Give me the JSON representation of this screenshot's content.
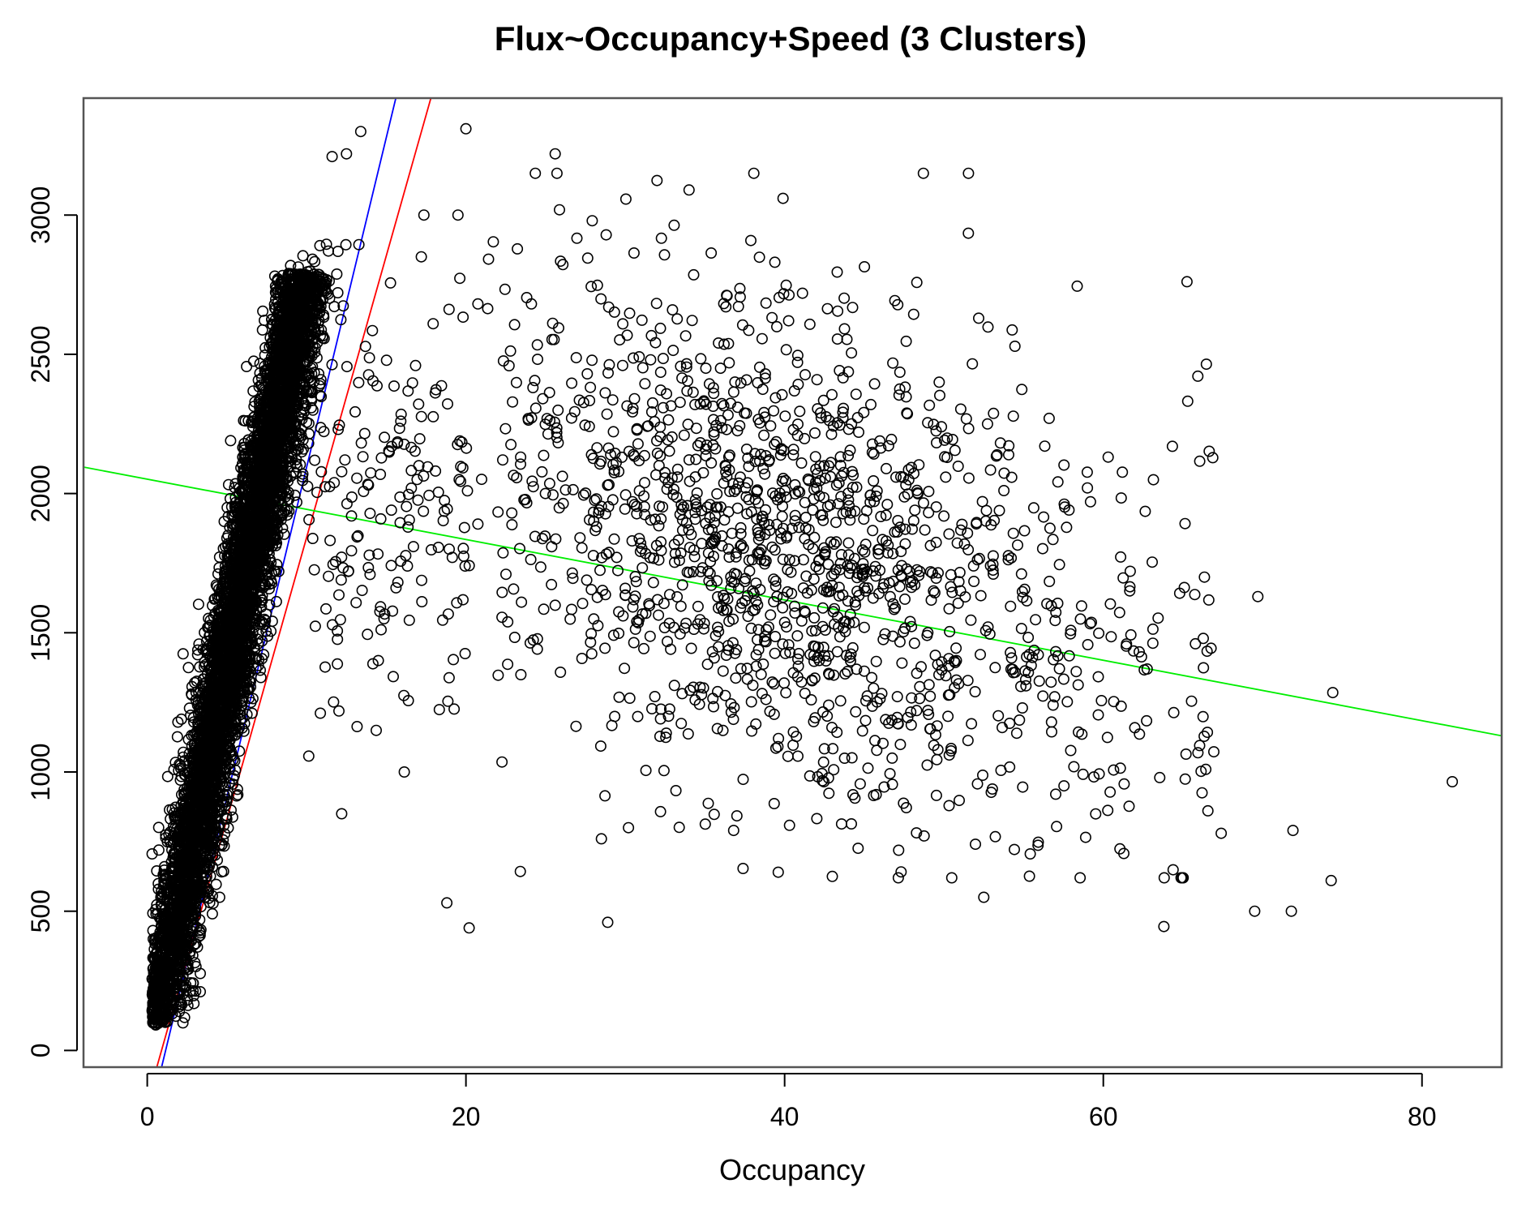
{
  "chart_data": {
    "type": "scatter",
    "title": "Flux~Occupancy+Speed (3 Clusters)",
    "xlabel": "Occupancy",
    "ylabel": "",
    "xlim": [
      -4,
      85
    ],
    "ylim": [
      -60,
      3420
    ],
    "x_ticks": [
      0,
      20,
      40,
      60,
      80
    ],
    "y_ticks": [
      0,
      500,
      1000,
      1500,
      2000,
      2500,
      3000
    ],
    "grid": false,
    "legend": "none",
    "point_color": "#000000",
    "point_shape": "open-circle",
    "clusters": [
      {
        "description_visible": false,
        "x_range": [
          0.5,
          10
        ],
        "y_range": [
          80,
          2900
        ],
        "approx_count": 6000,
        "trend": {
          "slope": 290,
          "intercept": -80
        }
      },
      {
        "x_range": [
          10,
          20
        ],
        "approx_count": 180
      },
      {
        "x_range": [
          20,
          82
        ],
        "approx_count": 1500
      }
    ],
    "outliers": [
      {
        "x": 12.2,
        "y": 850
      },
      {
        "x": 13.4,
        "y": 3300
      },
      {
        "x": 12.5,
        "y": 3220
      },
      {
        "x": 11.6,
        "y": 3210
      },
      {
        "x": 20.0,
        "y": 3310
      },
      {
        "x": 25.6,
        "y": 3220
      },
      {
        "x": 39.9,
        "y": 3060
      },
      {
        "x": 34.0,
        "y": 3090
      },
      {
        "x": 18.8,
        "y": 530
      },
      {
        "x": 20.2,
        "y": 440
      },
      {
        "x": 28.9,
        "y": 460
      },
      {
        "x": 52.5,
        "y": 550
      },
      {
        "x": 63.8,
        "y": 445
      },
      {
        "x": 69.5,
        "y": 500
      },
      {
        "x": 71.8,
        "y": 500
      },
      {
        "x": 74.3,
        "y": 610
      },
      {
        "x": 81.9,
        "y": 965
      },
      {
        "x": 74.4,
        "y": 1285
      },
      {
        "x": 69.7,
        "y": 1630
      },
      {
        "x": 67.4,
        "y": 780
      },
      {
        "x": 71.9,
        "y": 790
      },
      {
        "x": 39.6,
        "y": 640
      },
      {
        "x": 28.5,
        "y": 760
      },
      {
        "x": 30.2,
        "y": 800
      },
      {
        "x": 36.8,
        "y": 790
      },
      {
        "x": 14.5,
        "y": 1400
      },
      {
        "x": 17.2,
        "y": 2850
      },
      {
        "x": 56.6,
        "y": 2270
      },
      {
        "x": 49.7,
        "y": 2400
      },
      {
        "x": 59.0,
        "y": 2020
      }
    ],
    "lines": [
      {
        "color": "#0000ff",
        "x": [
          0.9,
          15.6
        ],
        "y": [
          -60,
          3420
        ]
      },
      {
        "color": "#ff0000",
        "x": [
          0.6,
          17.8
        ],
        "y": [
          -60,
          3420
        ]
      },
      {
        "color": "#00ee00",
        "x": [
          -4,
          85
        ],
        "y": [
          2095,
          1130
        ]
      }
    ]
  }
}
